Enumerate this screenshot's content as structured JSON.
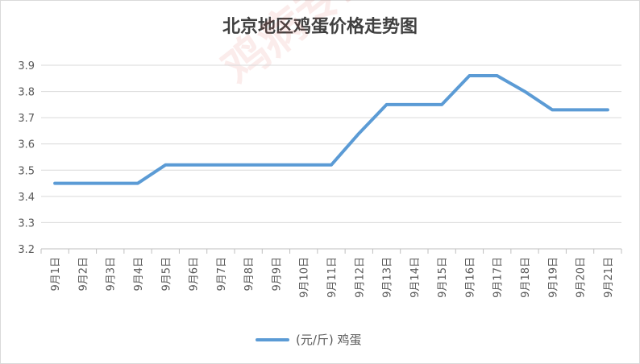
{
  "chart_data": {
    "type": "line",
    "title": "北京地区鸡蛋价格走势图",
    "categories": [
      "9月1日",
      "9月2日",
      "9月3日",
      "9月4日",
      "9月5日",
      "9月6日",
      "9月7日",
      "9月8日",
      "9月9日",
      "9月10日",
      "9月11日",
      "9月12日",
      "9月13日",
      "9月14日",
      "9月15日",
      "9月16日",
      "9月17日",
      "9月18日",
      "9月19日",
      "9月20日",
      "9月21日"
    ],
    "series": [
      {
        "name": "(元/斤)  鸡蛋",
        "color": "#5b9bd5",
        "values": [
          3.45,
          3.45,
          3.45,
          3.45,
          3.52,
          3.52,
          3.52,
          3.52,
          3.52,
          3.52,
          3.52,
          3.64,
          3.75,
          3.75,
          3.75,
          3.86,
          3.86,
          3.8,
          3.73,
          3.73,
          3.73
        ]
      }
    ],
    "yticks": [
      "3.2",
      "3.3",
      "3.4",
      "3.5",
      "3.6",
      "3.7",
      "3.8",
      "3.9"
    ],
    "ylim": [
      3.2,
      3.9
    ],
    "grid": true,
    "legend_position": "bottom"
  },
  "watermark": "鸡病专业网 www.jbzyw.com"
}
